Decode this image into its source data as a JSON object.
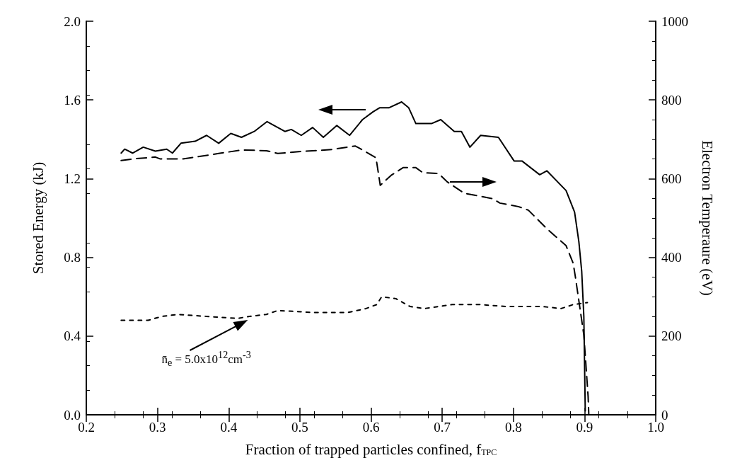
{
  "chart_data": {
    "type": "line",
    "xlabel": "Fraction of trapped particles confined, f$_{TPC}$",
    "ylabel": "Stored Energy (kJ)",
    "y2label": "Electron Temperaure (eV)",
    "xlim": [
      0.2,
      1.0
    ],
    "xticks": [
      0.2,
      0.3,
      0.4,
      0.5,
      0.6,
      0.7,
      0.8,
      0.9,
      {
        "value": 1.0,
        "label": "1.0"
      }
    ],
    "ylim": [
      0,
      2.0
    ],
    "yticks": [
      {
        "value": 0,
        "label": "0.0"
      },
      0.4,
      0.8,
      1.2,
      1.6,
      {
        "value": 2.0,
        "label": "2.0"
      }
    ],
    "y2lim": [
      0,
      1000
    ],
    "y2ticks": [
      0,
      200,
      400,
      600,
      800,
      1000
    ],
    "grid": false,
    "marker": "none",
    "annotations": [
      {
        "text": "n̄$_{e}$ = 5.0x10$^{12}$cm$^{-3}$",
        "x": 0.43,
        "y": 0.5
      }
    ],
    "series": [
      {
        "color": "#000000",
        "line_style": "solid",
        "x": [
          0.249,
          0.254,
          0.265,
          0.28,
          0.297,
          0.313,
          0.321,
          0.333,
          0.353,
          0.369,
          0.386,
          0.403,
          0.418,
          0.436,
          0.454,
          0.479,
          0.488,
          0.502,
          0.518,
          0.533,
          0.552,
          0.57,
          0.588,
          0.603,
          0.612,
          0.625,
          0.643,
          0.653,
          0.663,
          0.685,
          0.698,
          0.717,
          0.727,
          0.739,
          0.754,
          0.779,
          0.801,
          0.812,
          0.837,
          0.847,
          0.874,
          0.886,
          0.892,
          0.896,
          0.899,
          0.901
        ],
        "values": [
          1.33,
          1.35,
          1.33,
          1.36,
          1.34,
          1.35,
          1.33,
          1.38,
          1.39,
          1.42,
          1.38,
          1.43,
          1.41,
          1.44,
          1.49,
          1.44,
          1.45,
          1.42,
          1.46,
          1.41,
          1.47,
          1.42,
          1.5,
          1.54,
          1.56,
          1.56,
          1.59,
          1.56,
          1.48,
          1.48,
          1.5,
          1.44,
          1.44,
          1.36,
          1.42,
          1.41,
          1.29,
          1.29,
          1.22,
          1.24,
          1.14,
          1.03,
          0.88,
          0.73,
          0.5,
          0.02
        ]
      },
      {
        "color": "#000000",
        "line_style": "dashed",
        "axis": "y2",
        "x": [
          0.249,
          0.265,
          0.297,
          0.304,
          0.336,
          0.386,
          0.419,
          0.453,
          0.469,
          0.502,
          0.545,
          0.578,
          0.587,
          0.607,
          0.613,
          0.628,
          0.645,
          0.663,
          0.673,
          0.695,
          0.707,
          0.731,
          0.771,
          0.781,
          0.807,
          0.821,
          0.837,
          0.847,
          0.874,
          0.884,
          0.887,
          0.899,
          0.905,
          0.906
        ],
        "values": [
          646,
          650,
          655,
          650,
          650,
          664,
          673,
          671,
          664,
          669,
          674,
          683,
          674,
          653,
          583,
          608,
          628,
          628,
          615,
          613,
          592,
          563,
          549,
          538,
          529,
          520,
          491,
          473,
          430,
          385,
          352,
          203,
          47,
          0
        ]
      },
      {
        "color": "#000000",
        "line_style": "dotted",
        "x": [
          0.249,
          0.287,
          0.306,
          0.329,
          0.369,
          0.413,
          0.429,
          0.453,
          0.469,
          0.518,
          0.568,
          0.593,
          0.608,
          0.615,
          0.635,
          0.655,
          0.675,
          0.714,
          0.754,
          0.791,
          0.841,
          0.867,
          0.884,
          0.904
        ],
        "values": [
          0.48,
          0.48,
          0.5,
          0.51,
          0.5,
          0.49,
          0.5,
          0.51,
          0.53,
          0.52,
          0.52,
          0.54,
          0.56,
          0.6,
          0.59,
          0.55,
          0.54,
          0.56,
          0.56,
          0.55,
          0.55,
          0.54,
          0.56,
          0.57
        ]
      }
    ]
  }
}
